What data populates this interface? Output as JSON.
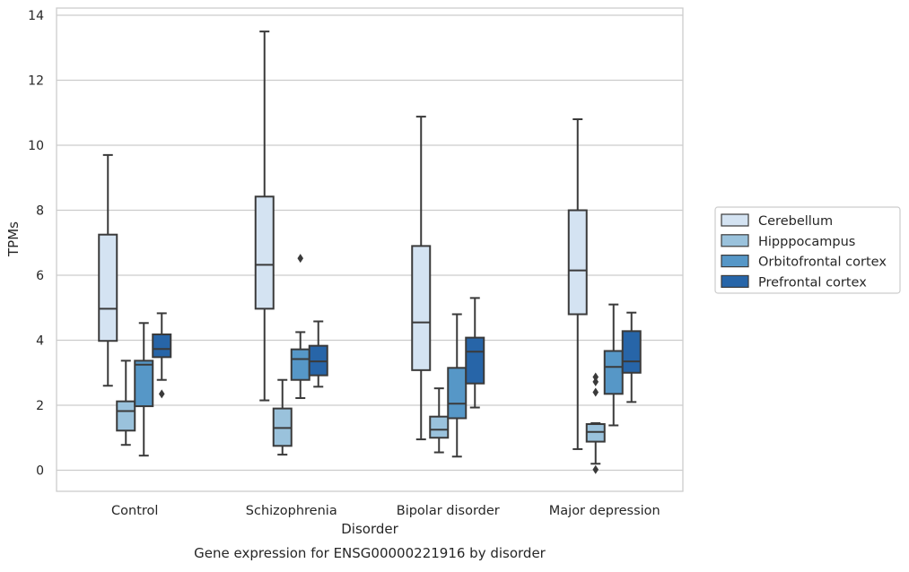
{
  "chart_data": {
    "type": "boxplot",
    "title": "Gene expression for ENSG00000221916 by disorder",
    "xlabel": "Disorder",
    "ylabel": "TPMs",
    "ylim": [
      -0.65,
      14.2
    ],
    "yticks": [
      0,
      2,
      4,
      6,
      8,
      10,
      12,
      14
    ],
    "grid": true,
    "legend_position": "right",
    "categories": [
      "Control",
      "Schizophrenia",
      "Bipolar disorder",
      "Major depression"
    ],
    "series": [
      {
        "name": "Cerebellum",
        "color": "#d4e3f2",
        "boxes": [
          {
            "whislo": 2.6,
            "q1": 3.98,
            "med": 4.97,
            "q3": 7.25,
            "whishi": 9.7,
            "fliers": []
          },
          {
            "whislo": 2.15,
            "q1": 4.97,
            "med": 6.32,
            "q3": 8.42,
            "whishi": 13.5,
            "fliers": []
          },
          {
            "whislo": 0.95,
            "q1": 3.08,
            "med": 4.55,
            "q3": 6.9,
            "whishi": 10.88,
            "fliers": []
          },
          {
            "whislo": 0.65,
            "q1": 4.8,
            "med": 6.15,
            "q3": 8.0,
            "whishi": 10.8,
            "fliers": []
          }
        ]
      },
      {
        "name": "Hipppocampus",
        "color": "#9ac2dc",
        "boxes": [
          {
            "whislo": 0.78,
            "q1": 1.22,
            "med": 1.82,
            "q3": 2.12,
            "whishi": 3.37,
            "fliers": []
          },
          {
            "whislo": 0.48,
            "q1": 0.75,
            "med": 1.3,
            "q3": 1.9,
            "whishi": 2.78,
            "fliers": []
          },
          {
            "whislo": 0.55,
            "q1": 1.0,
            "med": 1.25,
            "q3": 1.65,
            "whishi": 2.52,
            "fliers": []
          },
          {
            "whislo": 0.2,
            "q1": 0.88,
            "med": 1.18,
            "q3": 1.42,
            "whishi": 1.45,
            "fliers": [
              2.87,
              2.72,
              2.4,
              0.02
            ]
          }
        ]
      },
      {
        "name": "Orbitofrontal cortex",
        "color": "#5697c7",
        "boxes": [
          {
            "whislo": 0.45,
            "q1": 1.97,
            "med": 3.25,
            "q3": 3.37,
            "whishi": 4.53,
            "fliers": []
          },
          {
            "whislo": 2.22,
            "q1": 2.78,
            "med": 3.42,
            "q3": 3.72,
            "whishi": 4.25,
            "fliers": [
              6.52
            ]
          },
          {
            "whislo": 0.42,
            "q1": 1.6,
            "med": 2.05,
            "q3": 3.15,
            "whishi": 4.8,
            "fliers": []
          },
          {
            "whislo": 1.38,
            "q1": 2.35,
            "med": 3.18,
            "q3": 3.67,
            "whishi": 5.1,
            "fliers": []
          }
        ]
      },
      {
        "name": "Prefrontal cortex",
        "color": "#2765a8",
        "boxes": [
          {
            "whislo": 2.78,
            "q1": 3.48,
            "med": 3.73,
            "q3": 4.18,
            "whishi": 4.83,
            "fliers": [
              2.35
            ]
          },
          {
            "whislo": 2.57,
            "q1": 2.92,
            "med": 3.35,
            "q3": 3.83,
            "whishi": 4.58,
            "fliers": []
          },
          {
            "whislo": 1.93,
            "q1": 2.67,
            "med": 3.65,
            "q3": 4.08,
            "whishi": 5.3,
            "fliers": []
          },
          {
            "whislo": 2.1,
            "q1": 3.0,
            "med": 3.35,
            "q3": 4.28,
            "whishi": 4.85,
            "fliers": []
          }
        ]
      }
    ]
  }
}
